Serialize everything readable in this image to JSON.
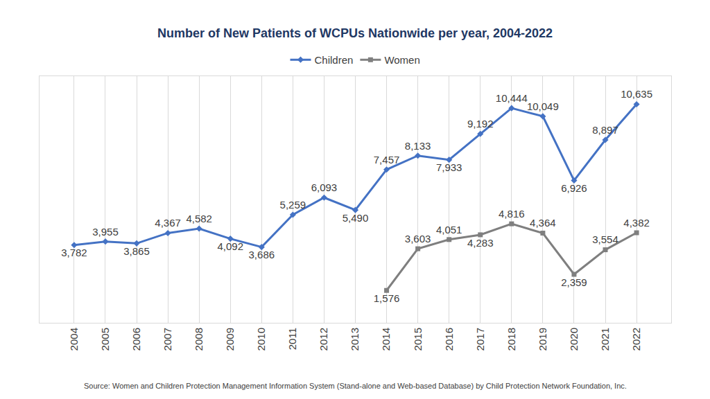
{
  "chart_data": {
    "type": "line",
    "title": "Number of New Patients of WCPUs Nationwide per year, 2004-2022",
    "annotations": [
      "Source: Women and Children Protection Management Information System (Stand-alone and Web-based Database) by Child Protection Network Foundation, Inc."
    ],
    "categories": [
      "2004",
      "2005",
      "2006",
      "2007",
      "2008",
      "2009",
      "2010",
      "2011",
      "2012",
      "2013",
      "2014",
      "2015",
      "2016",
      "2017",
      "2018",
      "2019",
      "2020",
      "2021",
      "2022"
    ],
    "series": [
      {
        "name": "Children",
        "color": "#4472c4",
        "marker": "diamond",
        "values": [
          3782,
          3955,
          3865,
          4367,
          4582,
          4092,
          3686,
          5259,
          6093,
          5490,
          7457,
          8133,
          7933,
          9192,
          10444,
          10049,
          6926,
          8897,
          10635
        ],
        "value_labels": [
          "3,782",
          "3,955",
          "3,865",
          "4,367",
          "4,582",
          "4,092",
          "3,686",
          "5,259",
          "6,093",
          "5,490",
          "7,457",
          "8,133",
          "7,933",
          "9,192",
          "10,444",
          "10,049",
          "6,926",
          "8,897",
          "10,635"
        ]
      },
      {
        "name": "Women",
        "color": "#7f7f7f",
        "marker": "square",
        "values": [
          null,
          null,
          null,
          null,
          null,
          null,
          null,
          null,
          null,
          null,
          1576,
          3603,
          4051,
          4283,
          4816,
          4364,
          2359,
          3554,
          4382
        ],
        "value_labels": [
          null,
          null,
          null,
          null,
          null,
          null,
          null,
          null,
          null,
          null,
          "1,576",
          "3,603",
          "4,051",
          "4,283",
          "4,816",
          "4,364",
          "2,359",
          "3,554",
          "4,382"
        ]
      }
    ],
    "ylim": [
      0,
      12000
    ],
    "tick_labels": "x",
    "grid": true,
    "legend": "top",
    "data_labels": true
  }
}
